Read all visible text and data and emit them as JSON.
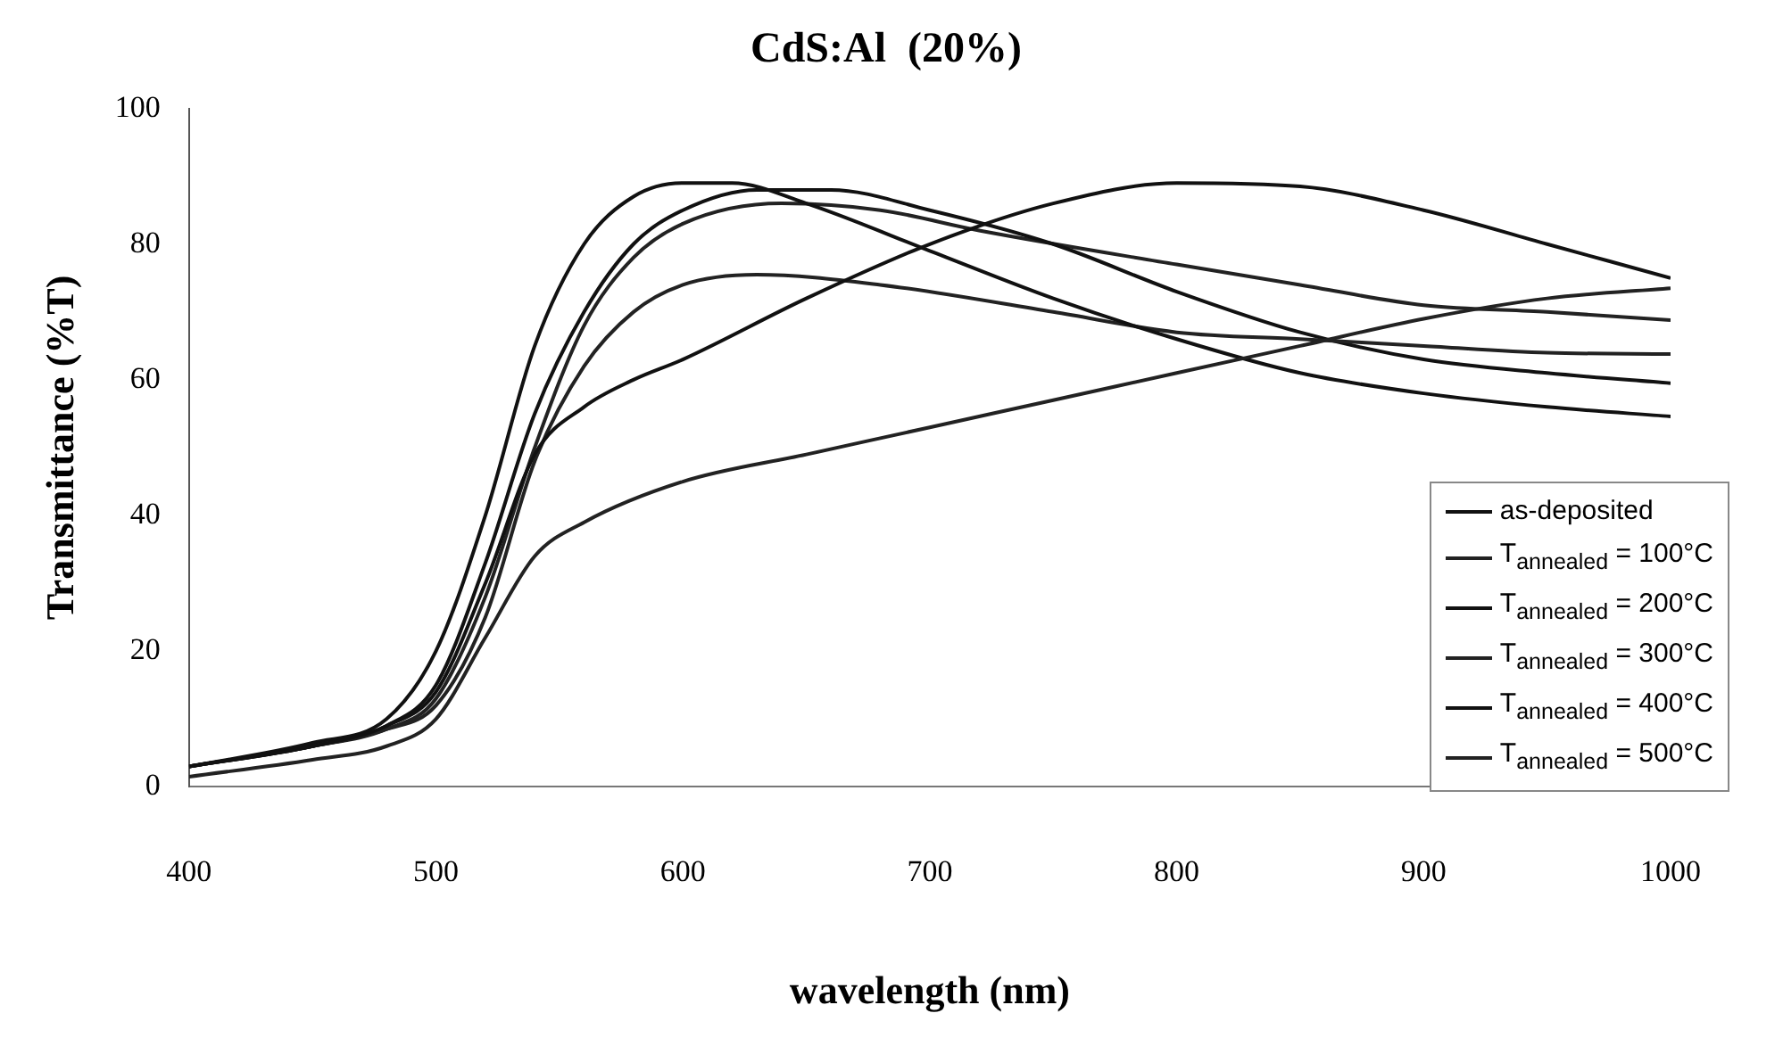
{
  "chart_data": {
    "type": "line",
    "title": "CdS:Al  (20%)",
    "xlabel": "wavelength (nm)",
    "ylabel": "Transmittance (%T)",
    "xlim": [
      400,
      1000
    ],
    "xticks": [
      400,
      500,
      600,
      700,
      800,
      900,
      1000
    ],
    "ylim": [
      0,
      100
    ],
    "yticks": [
      0,
      20,
      40,
      60,
      80,
      100
    ],
    "legend": "bottom right",
    "marker": "none",
    "series": [
      {
        "name": "as-deposited",
        "color": "#111111",
        "x": [
          400,
          450,
          480,
          500,
          520,
          540,
          560,
          580,
          600,
          650,
          700,
          750,
          800,
          850,
          900,
          950,
          1000
        ],
        "values": [
          3,
          6,
          9,
          14,
          30,
          49,
          56,
          60,
          63,
          72,
          80,
          86,
          89,
          88.5,
          85,
          80,
          75
        ]
      },
      {
        "name": "T$_{annealed}$ = 100°C",
        "color": "#222222",
        "x": [
          400,
          450,
          480,
          500,
          520,
          540,
          560,
          600,
          650,
          700,
          750,
          800,
          850,
          900,
          950,
          1000
        ],
        "values": [
          1.5,
          4,
          6,
          10,
          22,
          34,
          39,
          45,
          49,
          53,
          57,
          61,
          65,
          69,
          72,
          73.5
        ]
      },
      {
        "name": "T$_{annealed}$ = 200°C",
        "color": "#111111",
        "x": [
          400,
          450,
          480,
          500,
          520,
          540,
          560,
          580,
          600,
          620,
          650,
          700,
          750,
          800,
          850,
          900,
          950,
          1000
        ],
        "values": [
          3,
          6.5,
          10,
          20,
          40,
          65,
          80,
          87,
          89,
          89,
          86,
          79,
          72,
          66,
          61,
          58,
          56,
          54.6
        ]
      },
      {
        "name": "T$_{annealed}$ = 300°C",
        "color": "#222222",
        "x": [
          400,
          450,
          480,
          500,
          520,
          540,
          560,
          580,
          600,
          630,
          680,
          750,
          800,
          850,
          900,
          950,
          1000
        ],
        "values": [
          3,
          6,
          8.5,
          12,
          25,
          48,
          62,
          70,
          74,
          75.5,
          74,
          70,
          67,
          66,
          65,
          64,
          63.8
        ]
      },
      {
        "name": "T$_{annealed}$ = 400°C",
        "color": "#111111",
        "x": [
          400,
          450,
          480,
          500,
          520,
          540,
          560,
          580,
          600,
          630,
          660,
          700,
          750,
          800,
          850,
          900,
          950,
          1000
        ],
        "values": [
          3,
          6,
          9,
          15,
          33,
          55,
          70,
          80,
          85,
          88,
          88,
          85,
          80,
          73,
          67,
          63,
          61,
          59.5
        ]
      },
      {
        "name": "T$_{annealed}$ = 500°C",
        "color": "#222222",
        "x": [
          400,
          450,
          480,
          500,
          520,
          540,
          560,
          580,
          600,
          640,
          680,
          720,
          800,
          850,
          900,
          950,
          1000
        ],
        "values": [
          3,
          6,
          8.5,
          13,
          28,
          50,
          68,
          78,
          83,
          86,
          85,
          82,
          77,
          74,
          71,
          70,
          68.8
        ]
      }
    ]
  }
}
